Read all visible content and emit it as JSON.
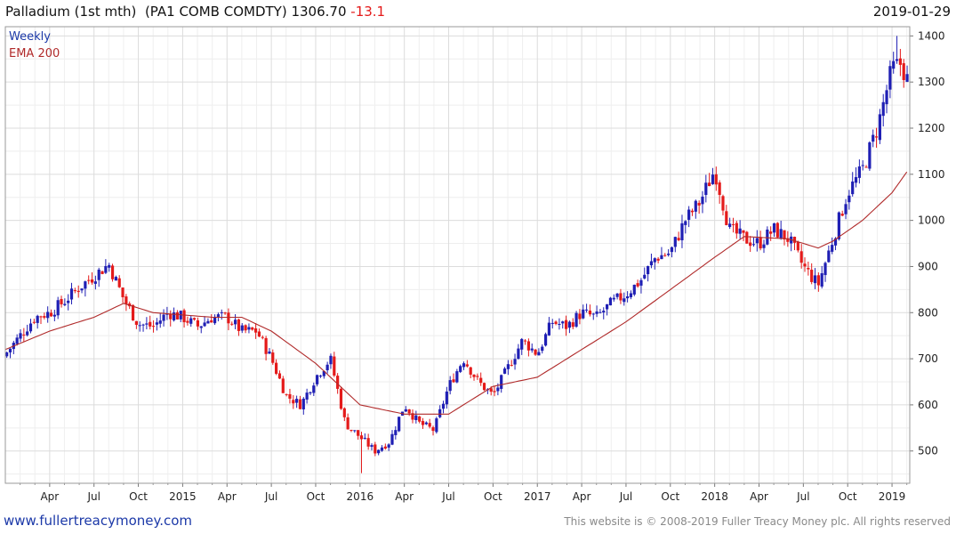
{
  "header": {
    "title": "Palladium (1st mth)",
    "ticker": "(PA1 COMB COMDTY)",
    "last": "1306.70",
    "change": "-13.1",
    "date": "2019-01-29"
  },
  "legend": {
    "period": "Weekly",
    "ma": "EMA 200"
  },
  "footer": {
    "url": "www.fullertreacymoney.com",
    "copyright": "This website is © 2008-2019 Fuller Treacy Money plc. All rights reserved"
  },
  "colors": {
    "up": "#1f1fb4",
    "down": "#e41a1a",
    "ema": "#b02a2a",
    "grid": "#dcdcdc",
    "border": "#9a9a9a"
  },
  "chart_data": {
    "type": "candlestick",
    "title": "Palladium (1st mth) (PA1 COMB COMDTY) 1306.70 -13.1",
    "frequency": "weekly",
    "ylim": [
      430,
      1420
    ],
    "yticks": [
      500,
      600,
      700,
      800,
      900,
      1000,
      1100,
      1200,
      1300,
      1400
    ],
    "xticks": [
      "Apr",
      "Jul",
      "Oct",
      "2015",
      "Apr",
      "Jul",
      "Oct",
      "2016",
      "Apr",
      "Jul",
      "Oct",
      "2017",
      "Apr",
      "Jul",
      "Oct",
      "2018",
      "Apr",
      "Jul",
      "Oct",
      "2019"
    ],
    "x_range_months": [
      0,
      61.2
    ],
    "xtick_months": [
      3,
      6,
      9,
      12,
      15,
      18,
      21,
      24,
      27,
      30,
      33,
      36,
      39,
      42,
      45,
      48,
      51,
      54,
      57,
      60
    ],
    "close_path": {
      "months": [
        0,
        1,
        2,
        3,
        4,
        5,
        6,
        7,
        8,
        9,
        10,
        11,
        12,
        13,
        14,
        15,
        16,
        17,
        18,
        19,
        20,
        21,
        22,
        23,
        24,
        25,
        26,
        27,
        28,
        29,
        30,
        31,
        32,
        33,
        34,
        35,
        36,
        37,
        38,
        39,
        40,
        41,
        42,
        43,
        44,
        45,
        46,
        47,
        48,
        49,
        50,
        51,
        52,
        53,
        54,
        55,
        56,
        57,
        58,
        59,
        60,
        60.6,
        61
      ],
      "values": [
        710,
        750,
        790,
        800,
        825,
        855,
        880,
        905,
        830,
        775,
        770,
        800,
        790,
        770,
        790,
        790,
        760,
        760,
        700,
        620,
        600,
        660,
        700,
        560,
        530,
        500,
        520,
        600,
        560,
        545,
        640,
        700,
        650,
        620,
        680,
        740,
        710,
        780,
        770,
        800,
        790,
        820,
        840,
        870,
        920,
        930,
        1000,
        1040,
        1110,
        980,
        960,
        950,
        980,
        960,
        900,
        860,
        960,
        1060,
        1110,
        1200,
        1330,
        1340,
        1306
      ]
    },
    "ema200_path": {
      "months": [
        0,
        3,
        6,
        8,
        10,
        14,
        16,
        18,
        21,
        24,
        27,
        30,
        33,
        36,
        39,
        42,
        45,
        48,
        50,
        53,
        55,
        56,
        58,
        60,
        61
      ],
      "values": [
        720,
        760,
        790,
        820,
        800,
        790,
        790,
        760,
        690,
        600,
        580,
        580,
        640,
        660,
        720,
        780,
        850,
        920,
        965,
        960,
        940,
        955,
        1000,
        1060,
        1105
      ]
    },
    "notable_extremes": {
      "high": 1400,
      "low": 452,
      "low_near": "early 2016"
    }
  }
}
